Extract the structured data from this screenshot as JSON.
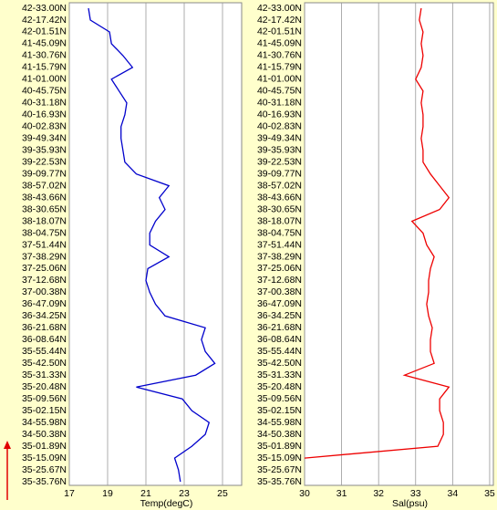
{
  "chart_data": [
    {
      "type": "line",
      "categories": [
        "42-33.00N",
        "42-17.42N",
        "42-01.51N",
        "41-45.09N",
        "41-30.76N",
        "41-15.79N",
        "41-01.00N",
        "40-45.75N",
        "40-31.18N",
        "40-16.93N",
        "40-02.83N",
        "39-49.34N",
        "39-35.93N",
        "39-22.53N",
        "39-09.77N",
        "38-57.02N",
        "38-43.66N",
        "38-30.65N",
        "38-18.07N",
        "38-04.75N",
        "37-51.44N",
        "37-38.29N",
        "37-25.06N",
        "37-12.68N",
        "37-00.38N",
        "36-47.09N",
        "36-34.25N",
        "36-21.68N",
        "36-08.64N",
        "35-55.44N",
        "35-42.50N",
        "35-31.33N",
        "35-20.48N",
        "35-09.56N",
        "35-02.15N",
        "34-55.98N",
        "34-50.38N",
        "35-01.89N",
        "35-15.09N",
        "35-25.67N",
        "35-35.76N"
      ],
      "x_label": "Temp(degC)",
      "xlim": [
        17,
        26
      ],
      "xticks": [
        17,
        19,
        21,
        23,
        25
      ],
      "grid": true,
      "series": [
        {
          "color": "#0000cc",
          "values": [
            18.0,
            18.1,
            19.1,
            19.2,
            19.8,
            20.3,
            19.2,
            19.6,
            20.0,
            19.9,
            19.7,
            19.7,
            19.8,
            19.9,
            20.5,
            22.2,
            21.7,
            22.0,
            21.5,
            21.2,
            21.2,
            22.2,
            21.1,
            21.0,
            21.2,
            21.5,
            22.0,
            24.1,
            23.9,
            24.1,
            24.6,
            23.6,
            20.5,
            22.9,
            23.4,
            24.3,
            24.1,
            23.4,
            22.5,
            22.7,
            22.8
          ]
        }
      ]
    },
    {
      "type": "line",
      "categories": [
        "42-33.00N",
        "42-17.42N",
        "42-01.51N",
        "41-45.09N",
        "41-30.76N",
        "41-15.79N",
        "41-01.00N",
        "40-45.75N",
        "40-31.18N",
        "40-16.93N",
        "40-02.83N",
        "39-49.34N",
        "39-35.93N",
        "39-22.53N",
        "39-09.77N",
        "38-57.02N",
        "38-43.66N",
        "38-30.65N",
        "38-18.07N",
        "38-04.75N",
        "37-51.44N",
        "37-38.29N",
        "37-25.06N",
        "37-12.68N",
        "37-00.38N",
        "36-47.09N",
        "36-34.25N",
        "36-21.68N",
        "36-08.64N",
        "35-55.44N",
        "35-42.50N",
        "35-31.33N",
        "35-20.48N",
        "35-09.56N",
        "35-02.15N",
        "34-55.98N",
        "34-50.38N",
        "35-01.89N",
        "35-15.09N",
        "35-25.67N",
        "35-35.76N"
      ],
      "x_label": "Sal(psu)",
      "xlim": [
        30,
        35.1
      ],
      "xticks": [
        30,
        31,
        32,
        33,
        34,
        35
      ],
      "grid": true,
      "series": [
        {
          "color": "#ee0000",
          "values": [
            33.15,
            33.1,
            33.2,
            33.15,
            33.2,
            33.15,
            33.0,
            33.2,
            33.15,
            33.2,
            33.2,
            33.15,
            33.2,
            33.2,
            33.4,
            33.65,
            33.9,
            33.65,
            32.9,
            33.2,
            33.3,
            33.5,
            33.4,
            33.35,
            33.35,
            33.3,
            33.35,
            33.45,
            33.4,
            33.4,
            33.5,
            32.7,
            33.9,
            33.65,
            33.65,
            33.75,
            33.75,
            33.6,
            30.0,
            null,
            null
          ]
        }
      ]
    }
  ]
}
